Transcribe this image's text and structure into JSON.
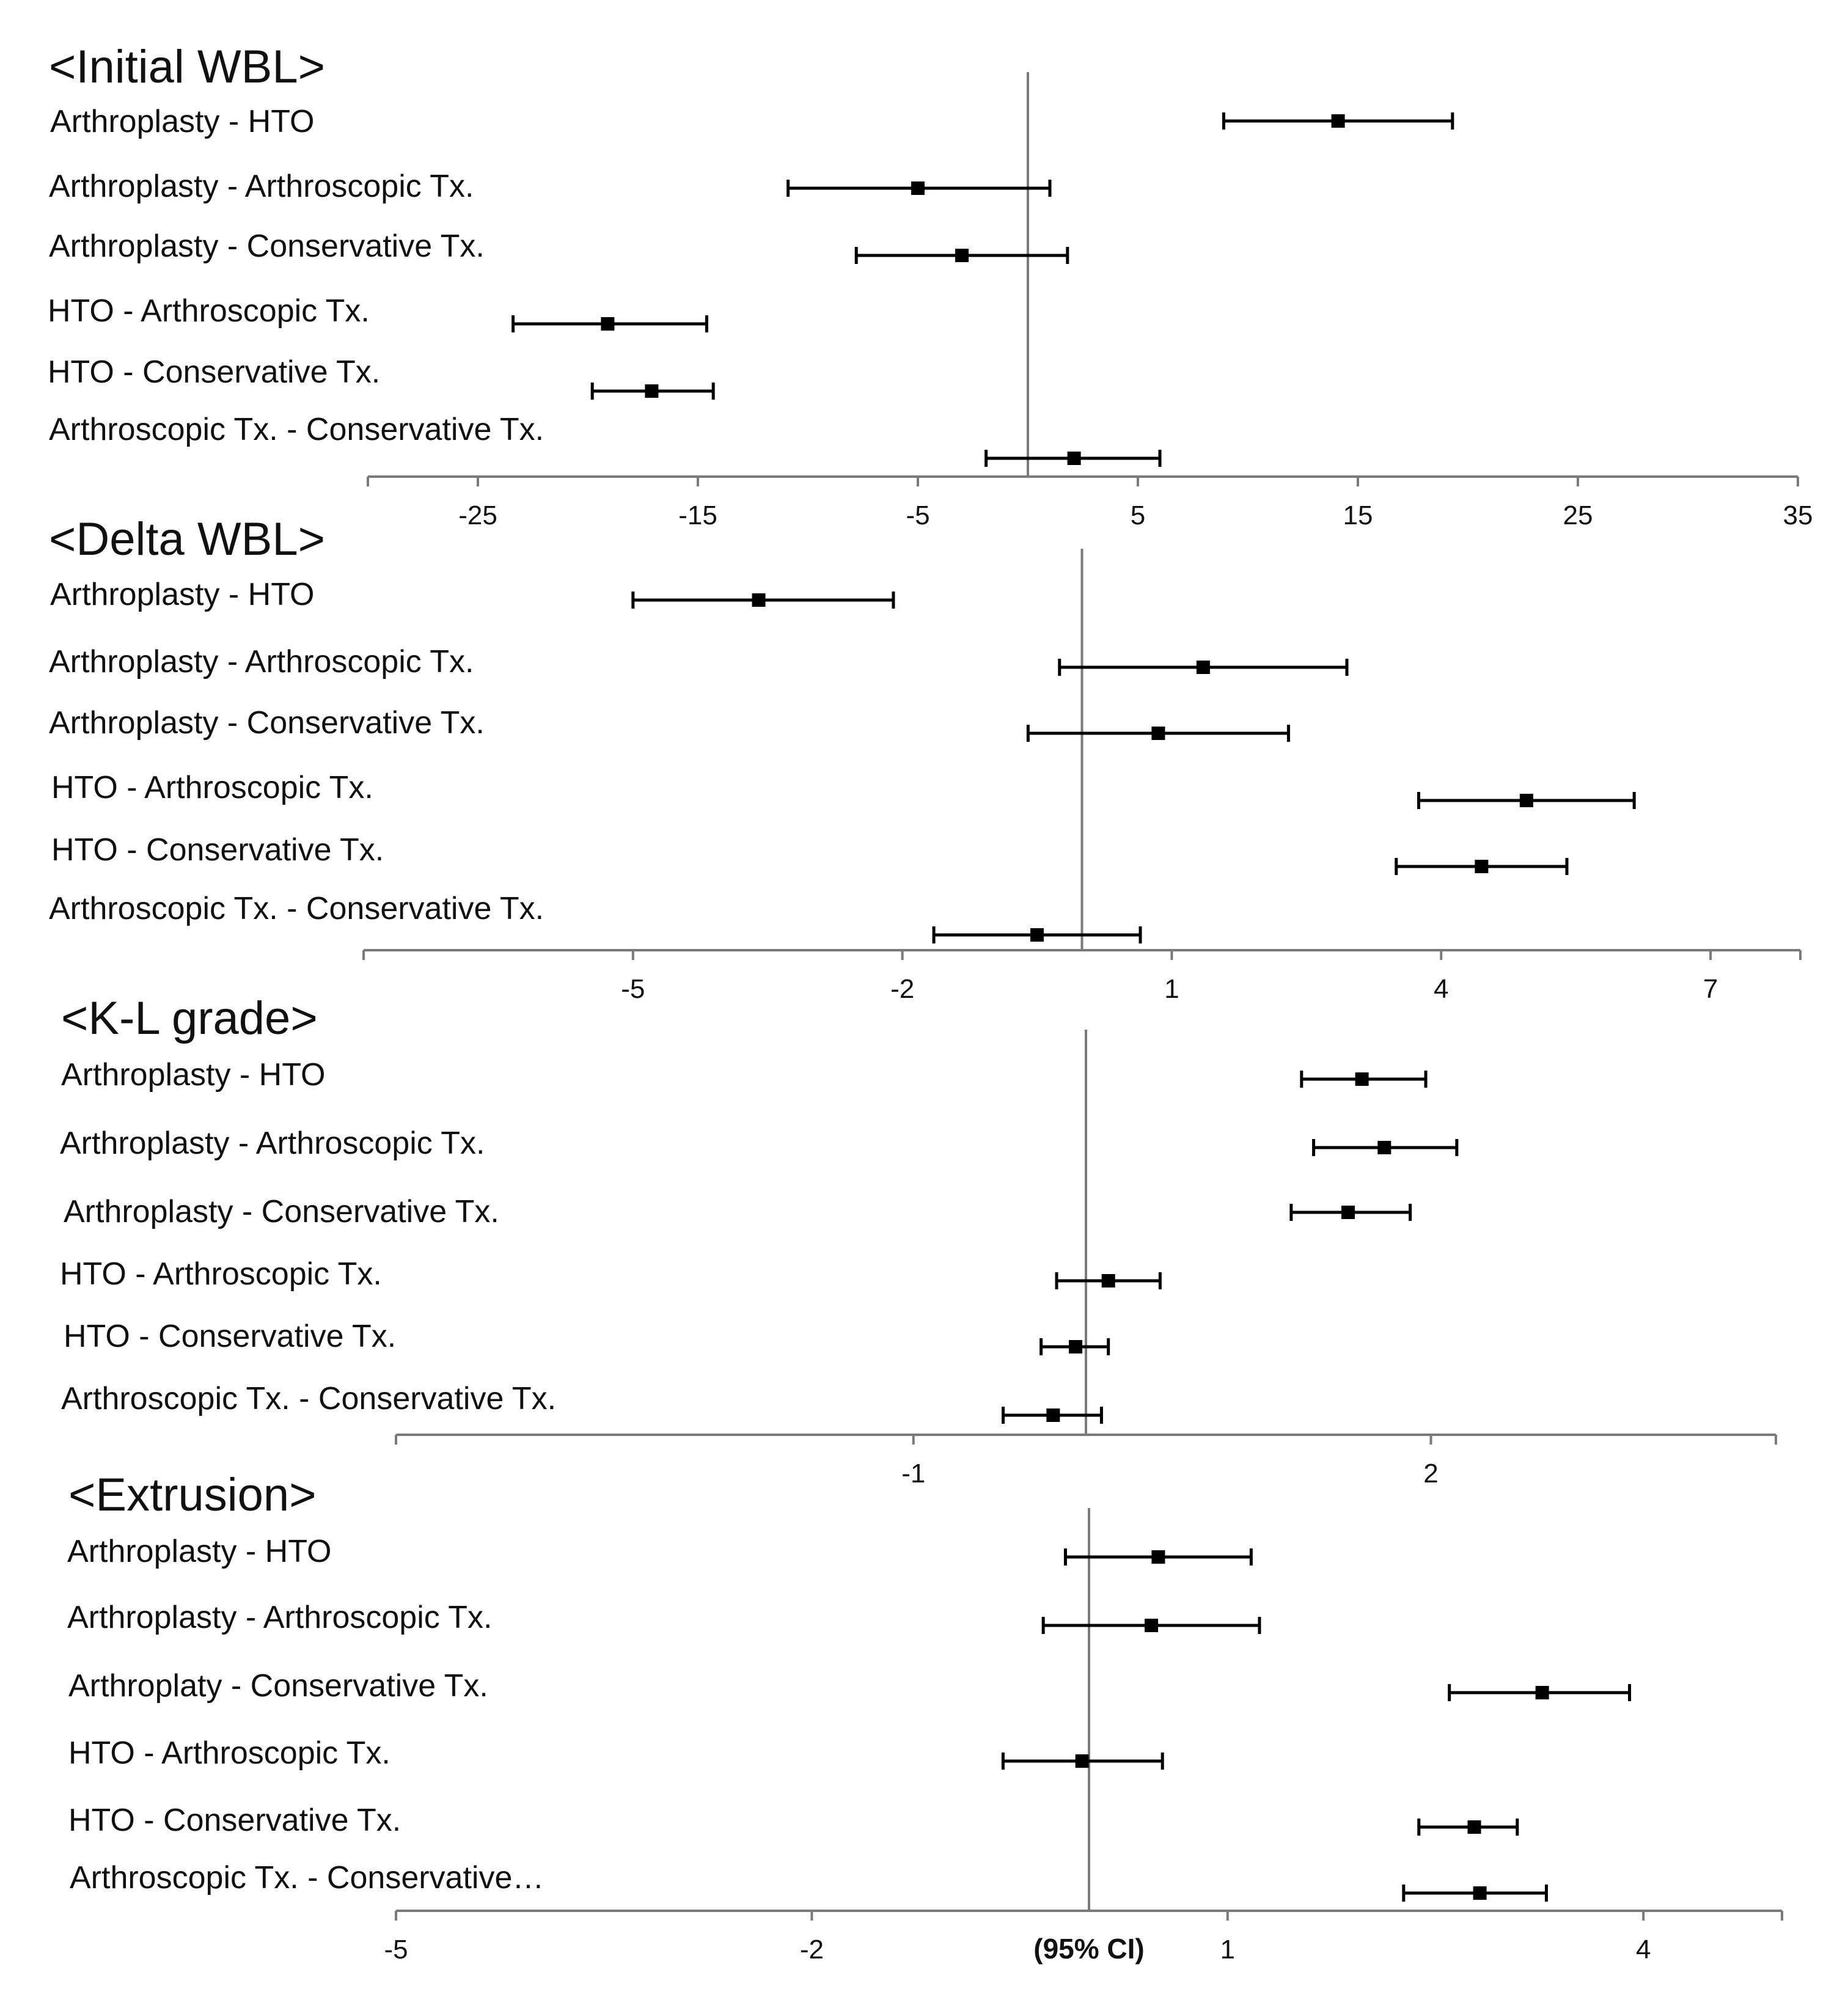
{
  "colors": {
    "marker": "#000000",
    "axis": "#7a7a7a",
    "text": "#111111"
  },
  "chart_data": [
    {
      "type": "forest",
      "title": "<Initial WBL>",
      "xlim": [
        -30,
        35
      ],
      "ticks": [
        -25,
        -15,
        -5,
        5,
        15,
        25,
        35
      ],
      "tick_labels": [
        "-25",
        "-15",
        "-5",
        "5",
        "15",
        "25",
        "35"
      ],
      "reference_line": 0,
      "xlabel": "",
      "rows": [
        {
          "label": "Arthroplasty - HTO",
          "estimate": 14.1,
          "lower": 8.9,
          "upper": 19.3
        },
        {
          "label": "Arthroplasty - Arthroscopic Tx.",
          "estimate": -5.0,
          "lower": -10.9,
          "upper": 1.0
        },
        {
          "label": "Arthroplasty - Conservative Tx.",
          "estimate": -3.0,
          "lower": -7.8,
          "upper": 1.8
        },
        {
          "label": "HTO - Arthroscopic Tx.",
          "estimate": -19.1,
          "lower": -23.4,
          "upper": -14.6
        },
        {
          "label": "HTO - Conservative Tx.",
          "estimate": -17.1,
          "lower": -19.8,
          "upper": -14.3
        },
        {
          "label": "Arthroscopic Tx. - Conservative Tx.",
          "estimate": 2.1,
          "lower": -1.9,
          "upper": 6.0
        }
      ]
    },
    {
      "type": "forest",
      "title": "<Delta WBL>",
      "xlim": [
        -8,
        8
      ],
      "ticks": [
        -5,
        -2,
        1,
        4,
        7
      ],
      "tick_labels": [
        "-5",
        "-2",
        "1",
        "4",
        "7"
      ],
      "reference_line": 0,
      "xlabel": "",
      "rows": [
        {
          "label": "Arthroplasty - HTO",
          "estimate": -3.6,
          "lower": -5.0,
          "upper": -2.1
        },
        {
          "label": "Arthroplasty - Arthroscopic Tx.",
          "estimate": 1.35,
          "lower": -0.25,
          "upper": 2.95
        },
        {
          "label": "Arthroplasty - Conservative Tx.",
          "estimate": 0.85,
          "lower": -0.6,
          "upper": 2.3
        },
        {
          "label": "HTO - Arthroscopic Tx.",
          "estimate": 4.95,
          "lower": 3.75,
          "upper": 6.15
        },
        {
          "label": "HTO - Conservative Tx.",
          "estimate": 4.45,
          "lower": 3.5,
          "upper": 5.4
        },
        {
          "label": "Arthroscopic Tx. - Conservative Tx.",
          "estimate": -0.5,
          "lower": -1.65,
          "upper": 0.65
        }
      ]
    },
    {
      "type": "forest",
      "title": "<K-L grade>",
      "xlim": [
        -4,
        4
      ],
      "ticks": [
        -1,
        2
      ],
      "tick_labels": [
        "-1",
        "2"
      ],
      "reference_line": 0,
      "xlabel": "",
      "rows": [
        {
          "label": "Arthroplasty - HTO",
          "estimate": 1.6,
          "lower": 1.25,
          "upper": 1.97
        },
        {
          "label": "Arthroplasty - Arthroscopic Tx.",
          "estimate": 1.73,
          "lower": 1.32,
          "upper": 2.15
        },
        {
          "label": "Arthroplasty - Conservative Tx.",
          "estimate": 1.52,
          "lower": 1.19,
          "upper": 1.88
        },
        {
          "label": "HTO - Arthroscopic Tx.",
          "estimate": 0.13,
          "lower": -0.17,
          "upper": 0.43
        },
        {
          "label": "HTO - Conservative Tx.",
          "estimate": -0.06,
          "lower": -0.26,
          "upper": 0.13
        },
        {
          "label": "Arthroscopic Tx. - Conservative Tx.",
          "estimate": -0.19,
          "lower": -0.48,
          "upper": 0.09
        }
      ]
    },
    {
      "type": "forest",
      "title": "<Extrusion>",
      "xlim": [
        -5,
        5
      ],
      "ticks": [
        -5,
        -2,
        1,
        4
      ],
      "tick_labels": [
        "-5",
        "-2",
        "1",
        "4"
      ],
      "reference_line": 0,
      "xlabel": "(95% CI)",
      "rows": [
        {
          "label": "Arthroplasty - HTO",
          "estimate": 0.5,
          "lower": -0.17,
          "upper": 1.17
        },
        {
          "label": "Arthroplasty - Arthroscopic Tx.",
          "estimate": 0.45,
          "lower": -0.33,
          "upper": 1.23
        },
        {
          "label": "Arthroplaty - Conservative Tx.",
          "estimate": 3.27,
          "lower": 2.6,
          "upper": 3.9
        },
        {
          "label": "HTO - Arthroscopic Tx.",
          "estimate": -0.05,
          "lower": -0.62,
          "upper": 0.53
        },
        {
          "label": "HTO - Conservative Tx.",
          "estimate": 2.78,
          "lower": 2.38,
          "upper": 3.09
        },
        {
          "label": "Arthroscopic Tx. - Conservative…",
          "estimate": 2.82,
          "lower": 2.27,
          "upper": 3.3
        }
      ]
    }
  ]
}
